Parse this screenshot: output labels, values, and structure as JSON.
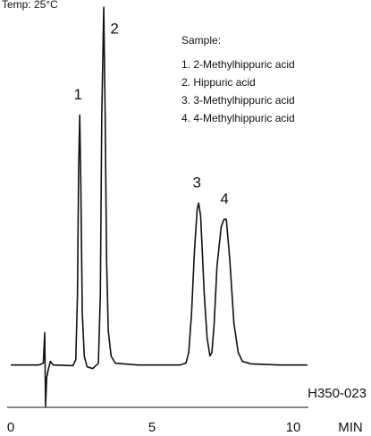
{
  "chart_data": {
    "type": "line",
    "note": "Temp:  25°C",
    "x_label": "MIN",
    "code": "H350-023",
    "legend_title": "Sample:",
    "legend_items": [
      "1. 2-Methylhippuric acid",
      "2. Hippuric acid",
      "3. 3-Methylhippuric acid",
      "4. 4-Methylhippuric acid"
    ],
    "peaks": [
      {
        "label": "1",
        "x": 2.44,
        "y": 70
      },
      {
        "label": "2",
        "x": 3.29,
        "y": 100
      },
      {
        "label": "3",
        "x": 6.65,
        "y": 45.5
      },
      {
        "label": "4",
        "x": 7.63,
        "y": 41
      }
    ],
    "xlim": [
      -0.13,
      10.6
    ],
    "xticks": [
      0,
      5,
      10
    ],
    "ylim": [
      -20,
      100
    ],
    "color": "#111111",
    "series": [
      {
        "x": [
          0,
          1.0,
          1.15,
          1.2,
          1.23,
          1.27,
          1.32,
          1.4,
          1.5,
          2.2,
          2.3,
          2.36,
          2.4,
          2.44,
          2.48,
          2.53,
          2.6,
          2.7,
          2.9,
          3.1,
          3.17,
          3.22,
          3.29,
          3.34,
          3.39,
          3.45,
          3.55,
          3.7,
          4.5,
          6.0,
          6.2,
          6.3,
          6.4,
          6.5,
          6.6,
          6.65,
          6.72,
          6.85,
          6.95,
          7.05,
          7.12,
          7.2,
          7.3,
          7.45,
          7.55,
          7.63,
          7.75,
          7.9,
          8.05,
          8.2,
          8.5,
          9.5,
          10.5
        ],
        "y": [
          0.5,
          0.5,
          1,
          9.5,
          -11,
          -3,
          -1,
          1.5,
          0.5,
          0.3,
          2,
          20,
          55,
          70,
          50,
          15,
          3,
          0,
          -0.5,
          1,
          20,
          70,
          100,
          70,
          30,
          10,
          3,
          1,
          0.5,
          0.5,
          1,
          4,
          15,
          32,
          44,
          45.5,
          42,
          20,
          8,
          3,
          4,
          12,
          28,
          39,
          41,
          41,
          30,
          12,
          4,
          1.5,
          0.8,
          0.5,
          0.5
        ]
      }
    ]
  }
}
